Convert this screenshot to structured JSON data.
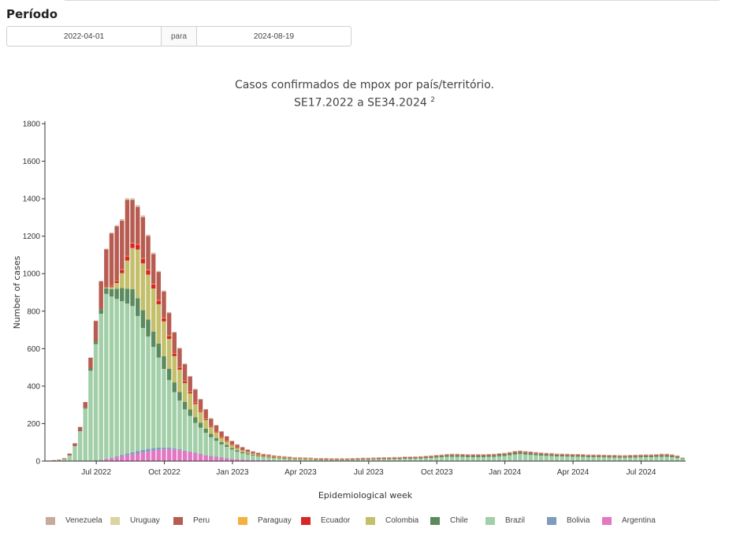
{
  "periodo": {
    "title": "Período",
    "start": "2022-04-01",
    "separator": "para",
    "end": "2024-08-19"
  },
  "chart_title": {
    "line1": "Casos confirmados de mpox por país/território.",
    "line2": "SE17.2022 a SE34.2024",
    "sup": "2"
  },
  "chart_data": {
    "type": "bar",
    "stacked": true,
    "xlabel": "Epidemiological week",
    "ylabel": "Number of cases",
    "ylim": [
      0,
      1800
    ],
    "yticks": [
      0,
      200,
      400,
      600,
      800,
      1000,
      1200,
      1400,
      1600,
      1800
    ],
    "xticks": [
      {
        "label": "Jul 2022",
        "week_index": 9.5
      },
      {
        "label": "Oct 2022",
        "week_index": 22.5
      },
      {
        "label": "Jan 2023",
        "week_index": 35.5
      },
      {
        "label": "Apr 2023",
        "week_index": 48.5
      },
      {
        "label": "Jul 2023",
        "week_index": 61.5
      },
      {
        "label": "Oct 2023",
        "week_index": 74.5
      },
      {
        "label": "Jan 2024",
        "week_index": 87.5
      },
      {
        "label": "Apr 2024",
        "week_index": 100.5
      },
      {
        "label": "Jul 2024",
        "week_index": 113.5
      }
    ],
    "week_count": 122,
    "legend_order": [
      "Venezuela",
      "Uruguay",
      "Peru",
      "Paraguay",
      "Ecuador",
      "Colombia",
      "Chile",
      "Brazil",
      "Bolivia",
      "Argentina"
    ],
    "colors": {
      "Argentina": "#e377c2",
      "Bolivia": "#7f9bbd",
      "Brazil": "#a3cfa8",
      "Chile": "#5a8a5e",
      "Colombia": "#c3bf6a",
      "Ecuador": "#d62728",
      "Paraguay": "#f5b041",
      "Peru": "#b85c52",
      "Uruguay": "#dcd3a0",
      "Venezuela": "#c9a99b"
    },
    "series": [
      {
        "name": "Argentina",
        "values": [
          0,
          0,
          0,
          0,
          0,
          0,
          0,
          0,
          2,
          3,
          5,
          10,
          15,
          20,
          25,
          30,
          35,
          40,
          45,
          50,
          55,
          60,
          62,
          64,
          62,
          58,
          52,
          48,
          42,
          36,
          30,
          26,
          22,
          18,
          15,
          12,
          10,
          8,
          7,
          6,
          5,
          4,
          4,
          3,
          3,
          3,
          2,
          2,
          2,
          2,
          2,
          1,
          1,
          1,
          1,
          1,
          1,
          1,
          1,
          1,
          1,
          1,
          1,
          1,
          1,
          1,
          1,
          1,
          1,
          1,
          1,
          1,
          1,
          1,
          1,
          1,
          1,
          1,
          1,
          1,
          1,
          1,
          1,
          1,
          1,
          1,
          1,
          1,
          1,
          1,
          1,
          1,
          1,
          1,
          1,
          1,
          1,
          1,
          1,
          1,
          1,
          1,
          1,
          1,
          1,
          1,
          1,
          1,
          1,
          1,
          1,
          1,
          1,
          1,
          1,
          1,
          1,
          1,
          1,
          1,
          1,
          1
        ]
      },
      {
        "name": "Bolivia",
        "values": [
          0,
          0,
          0,
          0,
          0,
          0,
          0,
          0,
          0,
          1,
          1,
          2,
          3,
          5,
          8,
          10,
          12,
          14,
          15,
          15,
          14,
          12,
          10,
          8,
          6,
          5,
          4,
          3,
          2,
          2,
          1,
          1,
          1,
          1,
          1,
          0,
          0,
          0,
          0,
          0,
          0,
          0,
          0,
          0,
          0,
          0,
          0,
          0,
          0,
          0,
          0,
          0,
          0,
          0,
          0,
          0,
          0,
          0,
          0,
          0,
          0,
          0,
          0,
          0,
          0,
          0,
          0,
          0,
          0,
          0,
          0,
          0,
          0,
          0,
          0,
          0,
          0,
          0,
          0,
          0,
          0,
          0,
          0,
          0,
          0,
          0,
          0,
          0,
          0,
          0,
          0,
          0,
          0,
          0,
          0,
          0,
          0,
          0,
          0,
          0,
          0,
          0,
          0,
          0,
          0,
          0,
          0,
          0,
          0,
          0,
          0,
          0,
          0,
          0,
          0,
          0,
          0,
          0,
          0,
          0,
          0,
          0
        ]
      },
      {
        "name": "Brazil",
        "values": [
          2,
          3,
          5,
          10,
          30,
          80,
          160,
          280,
          480,
          620,
          780,
          880,
          860,
          840,
          820,
          800,
          780,
          720,
          650,
          600,
          540,
          480,
          420,
          360,
          300,
          260,
          220,
          190,
          160,
          140,
          120,
          100,
          85,
          70,
          60,
          50,
          40,
          34,
          28,
          24,
          20,
          17,
          15,
          13,
          11,
          10,
          9,
          8,
          8,
          7,
          7,
          6,
          6,
          6,
          5,
          5,
          5,
          5,
          6,
          6,
          7,
          7,
          8,
          8,
          9,
          9,
          10,
          10,
          11,
          11,
          12,
          13,
          14,
          16,
          18,
          20,
          22,
          22,
          22,
          21,
          20,
          20,
          20,
          20,
          21,
          22,
          24,
          26,
          30,
          34,
          36,
          34,
          32,
          30,
          28,
          27,
          26,
          24,
          24,
          23,
          22,
          22,
          21,
          20,
          20,
          20,
          19,
          18,
          18,
          17,
          17,
          18,
          18,
          19,
          20,
          20,
          21,
          22,
          22,
          20,
          16,
          10
        ]
      },
      {
        "name": "Chile",
        "values": [
          0,
          0,
          0,
          0,
          0,
          0,
          2,
          5,
          10,
          15,
          22,
          30,
          40,
          55,
          70,
          80,
          90,
          95,
          95,
          90,
          82,
          75,
          68,
          60,
          52,
          45,
          40,
          35,
          30,
          26,
          22,
          18,
          15,
          12,
          10,
          8,
          7,
          6,
          5,
          4,
          4,
          3,
          3,
          3,
          2,
          2,
          2,
          2,
          2,
          2,
          2,
          2,
          2,
          2,
          2,
          2,
          2,
          2,
          2,
          3,
          3,
          3,
          3,
          4,
          4,
          4,
          4,
          4,
          5,
          5,
          5,
          5,
          6,
          6,
          7,
          7,
          8,
          8,
          8,
          8,
          8,
          8,
          8,
          8,
          8,
          8,
          9,
          9,
          9,
          10,
          10,
          9,
          9,
          8,
          8,
          8,
          8,
          7,
          7,
          7,
          7,
          7,
          7,
          6,
          6,
          6,
          6,
          6,
          6,
          6,
          6,
          6,
          7,
          7,
          7,
          7,
          7,
          8,
          8,
          7,
          6,
          4
        ]
      },
      {
        "name": "Colombia",
        "values": [
          0,
          0,
          0,
          0,
          0,
          0,
          0,
          0,
          0,
          0,
          2,
          5,
          10,
          30,
          80,
          150,
          220,
          260,
          250,
          240,
          230,
          210,
          185,
          160,
          140,
          120,
          100,
          85,
          70,
          58,
          46,
          36,
          28,
          22,
          17,
          13,
          10,
          8,
          6,
          5,
          4,
          3,
          3,
          2,
          2,
          2,
          2,
          1,
          1,
          1,
          1,
          1,
          1,
          1,
          1,
          1,
          1,
          1,
          1,
          1,
          1,
          1,
          1,
          1,
          1,
          1,
          1,
          1,
          1,
          1,
          1,
          1,
          1,
          1,
          1,
          1,
          1,
          1,
          1,
          1,
          1,
          1,
          1,
          1,
          1,
          1,
          1,
          1,
          1,
          1,
          1,
          1,
          1,
          1,
          1,
          1,
          1,
          1,
          1,
          1,
          1,
          1,
          1,
          1,
          1,
          1,
          1,
          1,
          1,
          1,
          1,
          1,
          1,
          1,
          1,
          1,
          1,
          1,
          1,
          1,
          1,
          1
        ]
      },
      {
        "name": "Ecuador",
        "values": [
          0,
          0,
          0,
          0,
          0,
          0,
          0,
          0,
          0,
          0,
          1,
          3,
          6,
          12,
          18,
          22,
          25,
          26,
          25,
          24,
          22,
          20,
          18,
          16,
          14,
          12,
          10,
          9,
          8,
          7,
          6,
          5,
          4,
          4,
          3,
          3,
          2,
          2,
          2,
          1,
          1,
          1,
          1,
          1,
          1,
          1,
          1,
          1,
          1,
          1,
          1,
          1,
          1,
          1,
          1,
          1,
          1,
          1,
          1,
          1,
          1,
          1,
          1,
          1,
          1,
          1,
          1,
          1,
          1,
          1,
          1,
          1,
          1,
          1,
          1,
          1,
          1,
          1,
          1,
          1,
          1,
          1,
          1,
          1,
          1,
          1,
          1,
          1,
          1,
          1,
          1,
          1,
          1,
          1,
          1,
          1,
          1,
          1,
          1,
          1,
          1,
          1,
          1,
          1,
          1,
          1,
          1,
          1,
          1,
          1,
          1,
          1,
          1,
          1,
          1,
          1,
          1,
          1,
          1,
          1,
          1,
          0
        ]
      },
      {
        "name": "Paraguay",
        "values": [
          0,
          0,
          0,
          0,
          0,
          0,
          0,
          0,
          0,
          0,
          0,
          0,
          1,
          1,
          2,
          2,
          2,
          2,
          2,
          2,
          2,
          2,
          2,
          2,
          2,
          1,
          1,
          1,
          1,
          1,
          1,
          1,
          1,
          1,
          1,
          1,
          1,
          1,
          1,
          1,
          1,
          1,
          1,
          1,
          1,
          1,
          1,
          1,
          1,
          1,
          1,
          0,
          0,
          0,
          0,
          0,
          0,
          0,
          0,
          0,
          0,
          0,
          0,
          0,
          0,
          0,
          0,
          0,
          0,
          0,
          0,
          0,
          0,
          0,
          0,
          0,
          0,
          0,
          0,
          0,
          0,
          0,
          0,
          0,
          0,
          0,
          0,
          0,
          0,
          0,
          0,
          0,
          0,
          0,
          0,
          0,
          0,
          0,
          0,
          0,
          0,
          0,
          0,
          0,
          0,
          0,
          0,
          0,
          0,
          0,
          0,
          0,
          0,
          0,
          0,
          0,
          0,
          0,
          0,
          0,
          0,
          0
        ]
      },
      {
        "name": "Peru",
        "values": [
          1,
          2,
          3,
          5,
          10,
          15,
          20,
          30,
          60,
          110,
          150,
          200,
          280,
          290,
          260,
          300,
          230,
          200,
          220,
          180,
          160,
          150,
          140,
          120,
          110,
          100,
          90,
          80,
          70,
          60,
          50,
          40,
          35,
          30,
          25,
          20,
          18,
          15,
          12,
          10,
          9,
          8,
          7,
          6,
          6,
          5,
          5,
          4,
          4,
          4,
          3,
          3,
          3,
          3,
          3,
          3,
          3,
          3,
          3,
          3,
          3,
          3,
          3,
          3,
          3,
          3,
          3,
          3,
          3,
          3,
          3,
          3,
          3,
          3,
          3,
          3,
          3,
          4,
          4,
          4,
          4,
          4,
          4,
          4,
          4,
          4,
          4,
          4,
          4,
          5,
          5,
          5,
          5,
          5,
          5,
          4,
          4,
          4,
          4,
          4,
          4,
          4,
          4,
          4,
          4,
          4,
          4,
          4,
          4,
          4,
          4,
          4,
          4,
          4,
          4,
          4,
          4,
          4,
          4,
          4,
          3,
          2
        ]
      },
      {
        "name": "Uruguay",
        "values": [
          0,
          0,
          0,
          0,
          0,
          0,
          0,
          0,
          0,
          1,
          1,
          2,
          3,
          4,
          5,
          5,
          5,
          5,
          5,
          4,
          4,
          3,
          3,
          3,
          2,
          2,
          2,
          2,
          1,
          1,
          1,
          1,
          1,
          1,
          1,
          1,
          1,
          1,
          1,
          1,
          1,
          1,
          1,
          1,
          1,
          1,
          1,
          1,
          1,
          1,
          1,
          1,
          1,
          1,
          1,
          1,
          1,
          1,
          1,
          1,
          1,
          1,
          1,
          1,
          1,
          1,
          1,
          1,
          1,
          1,
          1,
          1,
          1,
          1,
          1,
          1,
          1,
          1,
          1,
          1,
          1,
          1,
          1,
          1,
          1,
          1,
          1,
          1,
          1,
          1,
          1,
          1,
          1,
          1,
          1,
          1,
          1,
          1,
          1,
          1,
          1,
          1,
          1,
          1,
          1,
          1,
          1,
          1,
          1,
          1,
          1,
          1,
          1,
          1,
          1,
          1,
          1,
          1,
          1,
          1,
          1,
          0
        ]
      },
      {
        "name": "Venezuela",
        "values": [
          0,
          0,
          0,
          0,
          0,
          0,
          0,
          0,
          0,
          0,
          0,
          1,
          1,
          2,
          3,
          3,
          3,
          3,
          3,
          3,
          3,
          3,
          2,
          2,
          2,
          2,
          2,
          1,
          1,
          1,
          1,
          1,
          1,
          1,
          1,
          1,
          1,
          1,
          1,
          1,
          1,
          1,
          1,
          1,
          1,
          1,
          1,
          1,
          1,
          1,
          1,
          1,
          1,
          1,
          1,
          1,
          1,
          1,
          1,
          1,
          1,
          1,
          1,
          1,
          1,
          1,
          1,
          1,
          1,
          1,
          1,
          1,
          1,
          1,
          1,
          1,
          1,
          1,
          1,
          1,
          1,
          1,
          1,
          1,
          1,
          1,
          1,
          1,
          1,
          1,
          1,
          1,
          1,
          1,
          1,
          1,
          1,
          1,
          1,
          1,
          1,
          1,
          1,
          1,
          1,
          1,
          1,
          1,
          1,
          1,
          1,
          1,
          1,
          1,
          1,
          1,
          1,
          1,
          1,
          1,
          1,
          0
        ]
      }
    ]
  }
}
